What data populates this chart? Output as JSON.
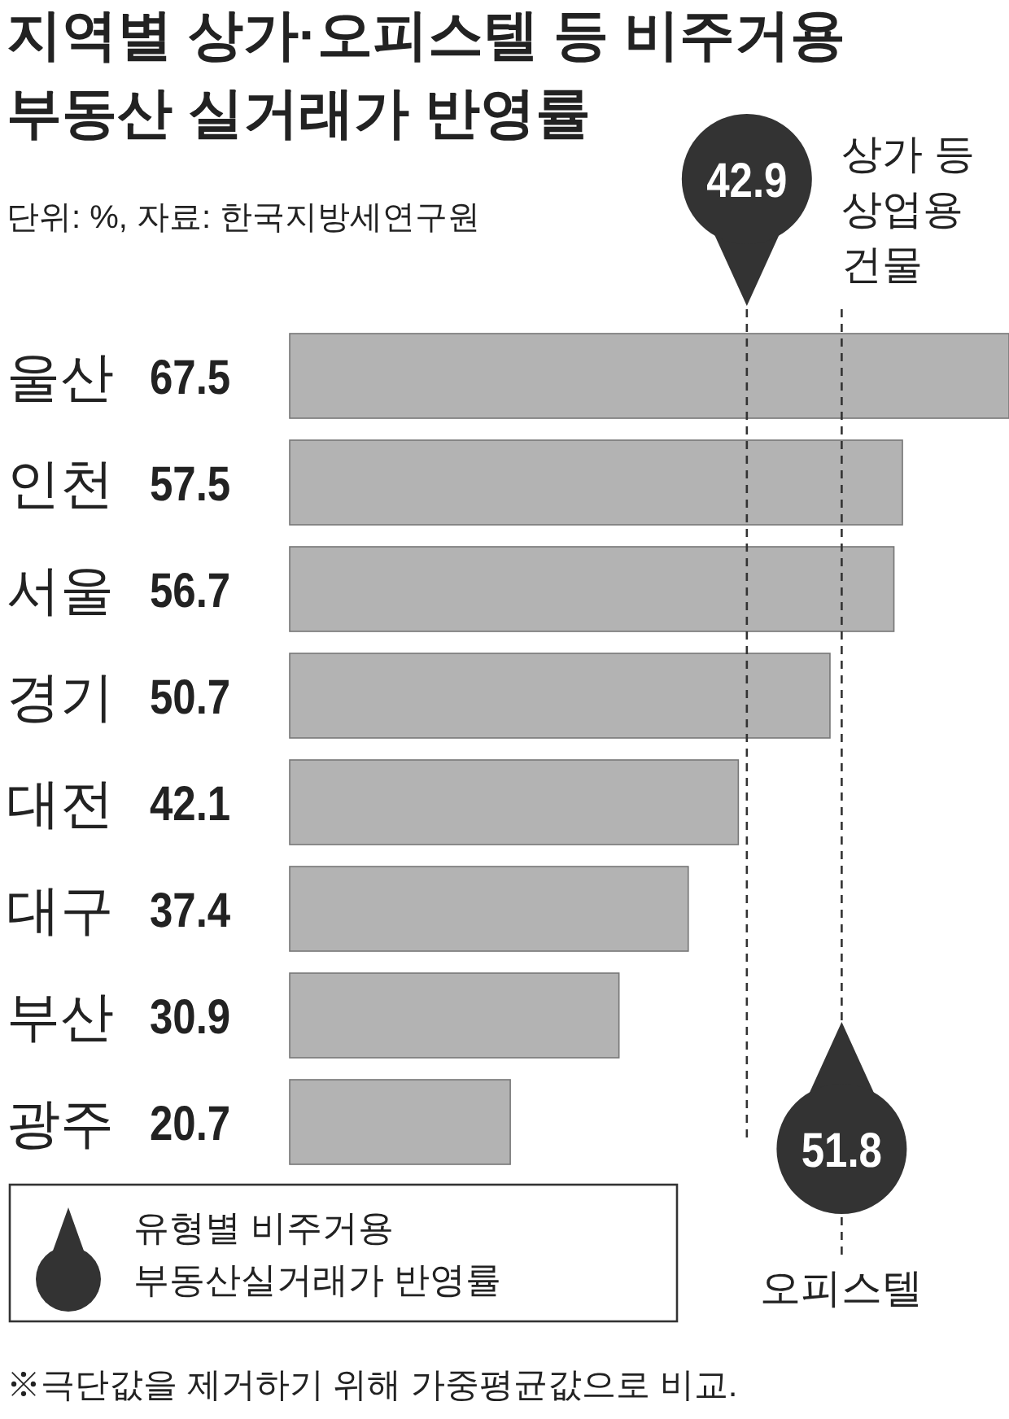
{
  "chart_data": {
    "type": "bar",
    "orientation": "horizontal",
    "title": "지역별 상가·오피스텔 등 비주거용\n부동산 실거래가 반영률",
    "subtitle": "단위: %, 자료: 한국지방세연구원",
    "categories": [
      "울산",
      "인천",
      "서울",
      "경기",
      "대전",
      "대구",
      "부산",
      "광주"
    ],
    "values": [
      67.5,
      57.5,
      56.7,
      50.7,
      42.1,
      37.4,
      30.9,
      20.7
    ],
    "color": "#b3b3b3",
    "data_labels": true,
    "xlim": [
      0,
      67.5
    ],
    "ref_lines": [
      {
        "axis": "x",
        "value": 42.9,
        "label": "상가 등\n상업용\n건물",
        "color": "#333333",
        "line_style": "dashed"
      },
      {
        "axis": "x",
        "value": 51.8,
        "label": "오피스텔",
        "color": "#333333",
        "line_style": "dashed"
      }
    ],
    "annotations": [
      "유형별 비주거용\n부동산실거래가 반영률",
      "※극단값을 제거하기 위해 가중평균값으로 비교.",
      "42.9",
      "51.8"
    ]
  }
}
